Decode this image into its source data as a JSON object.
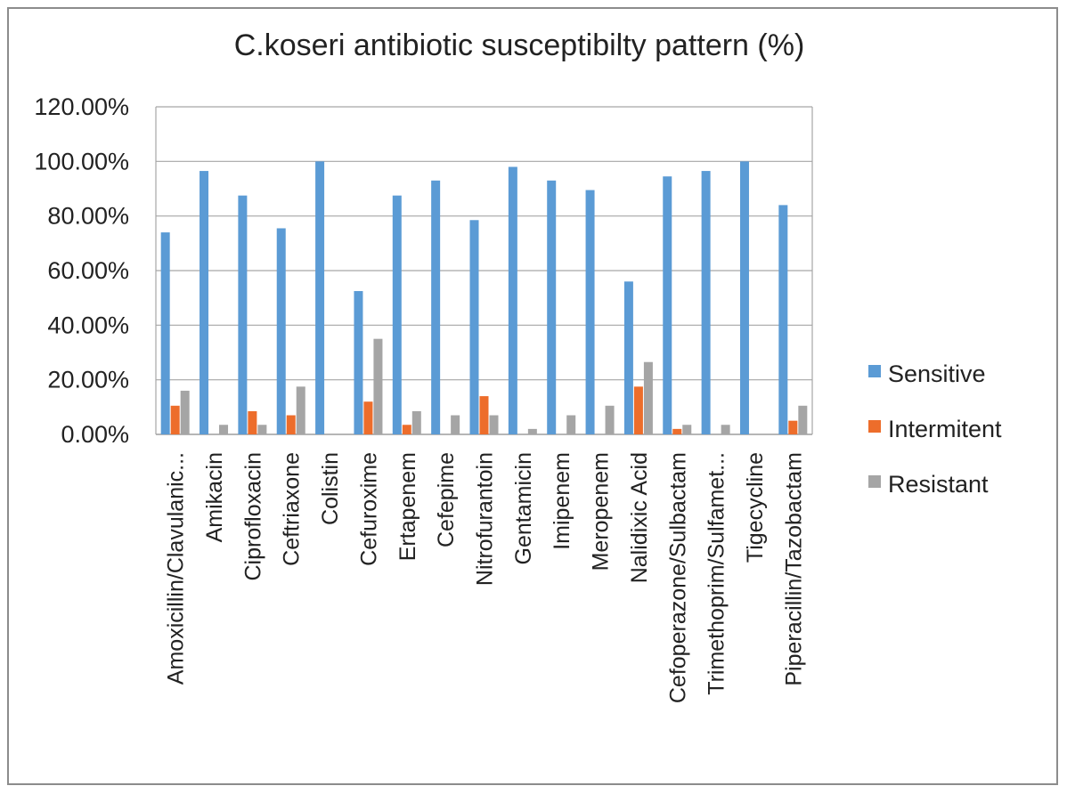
{
  "chart_data": {
    "type": "bar",
    "title": "C.koseri antibiotic susceptibilty pattern (%)",
    "categories": [
      "Amoxicillin/Clavulanic...",
      "Amikacin",
      "Ciprofloxacin",
      "Ceftriaxone",
      "Colistin",
      "Cefuroxime",
      "Ertapenem",
      "Cefepime",
      "Nitrofurantoin",
      "Gentamicin",
      "Imipenem",
      "Meropenem",
      "Nalidixic Acid",
      "Cefoperazone/Sulbactam",
      "Trimethoprim/Sulfamet...",
      "Tigecycline",
      "Piperacillin/Tazobactam"
    ],
    "series": [
      {
        "name": "Sensitive",
        "color": "#5b9bd5",
        "values": [
          74,
          96.5,
          87.5,
          75.5,
          100,
          52.5,
          87.5,
          93,
          78.5,
          98,
          93,
          89.5,
          56,
          94.5,
          96.5,
          100,
          84
        ]
      },
      {
        "name": "Intermitent",
        "color": "#ed6d2b",
        "values": [
          10.5,
          0,
          8.5,
          7,
          0,
          12,
          3.5,
          0,
          14,
          0,
          0,
          0,
          17.5,
          2,
          0,
          0,
          5
        ]
      },
      {
        "name": "Resistant",
        "color": "#a5a5a5",
        "values": [
          16,
          3.5,
          3.5,
          17.5,
          0,
          35,
          8.5,
          7,
          7,
          2,
          7,
          10.5,
          26.5,
          3.5,
          3.5,
          0,
          10.5
        ]
      }
    ],
    "y_ticks": [
      "0.00%",
      "20.00%",
      "40.00%",
      "60.00%",
      "80.00%",
      "100.00%",
      "120.00%"
    ],
    "ylim": [
      0,
      120
    ],
    "grid": true,
    "legend_position": "right"
  }
}
